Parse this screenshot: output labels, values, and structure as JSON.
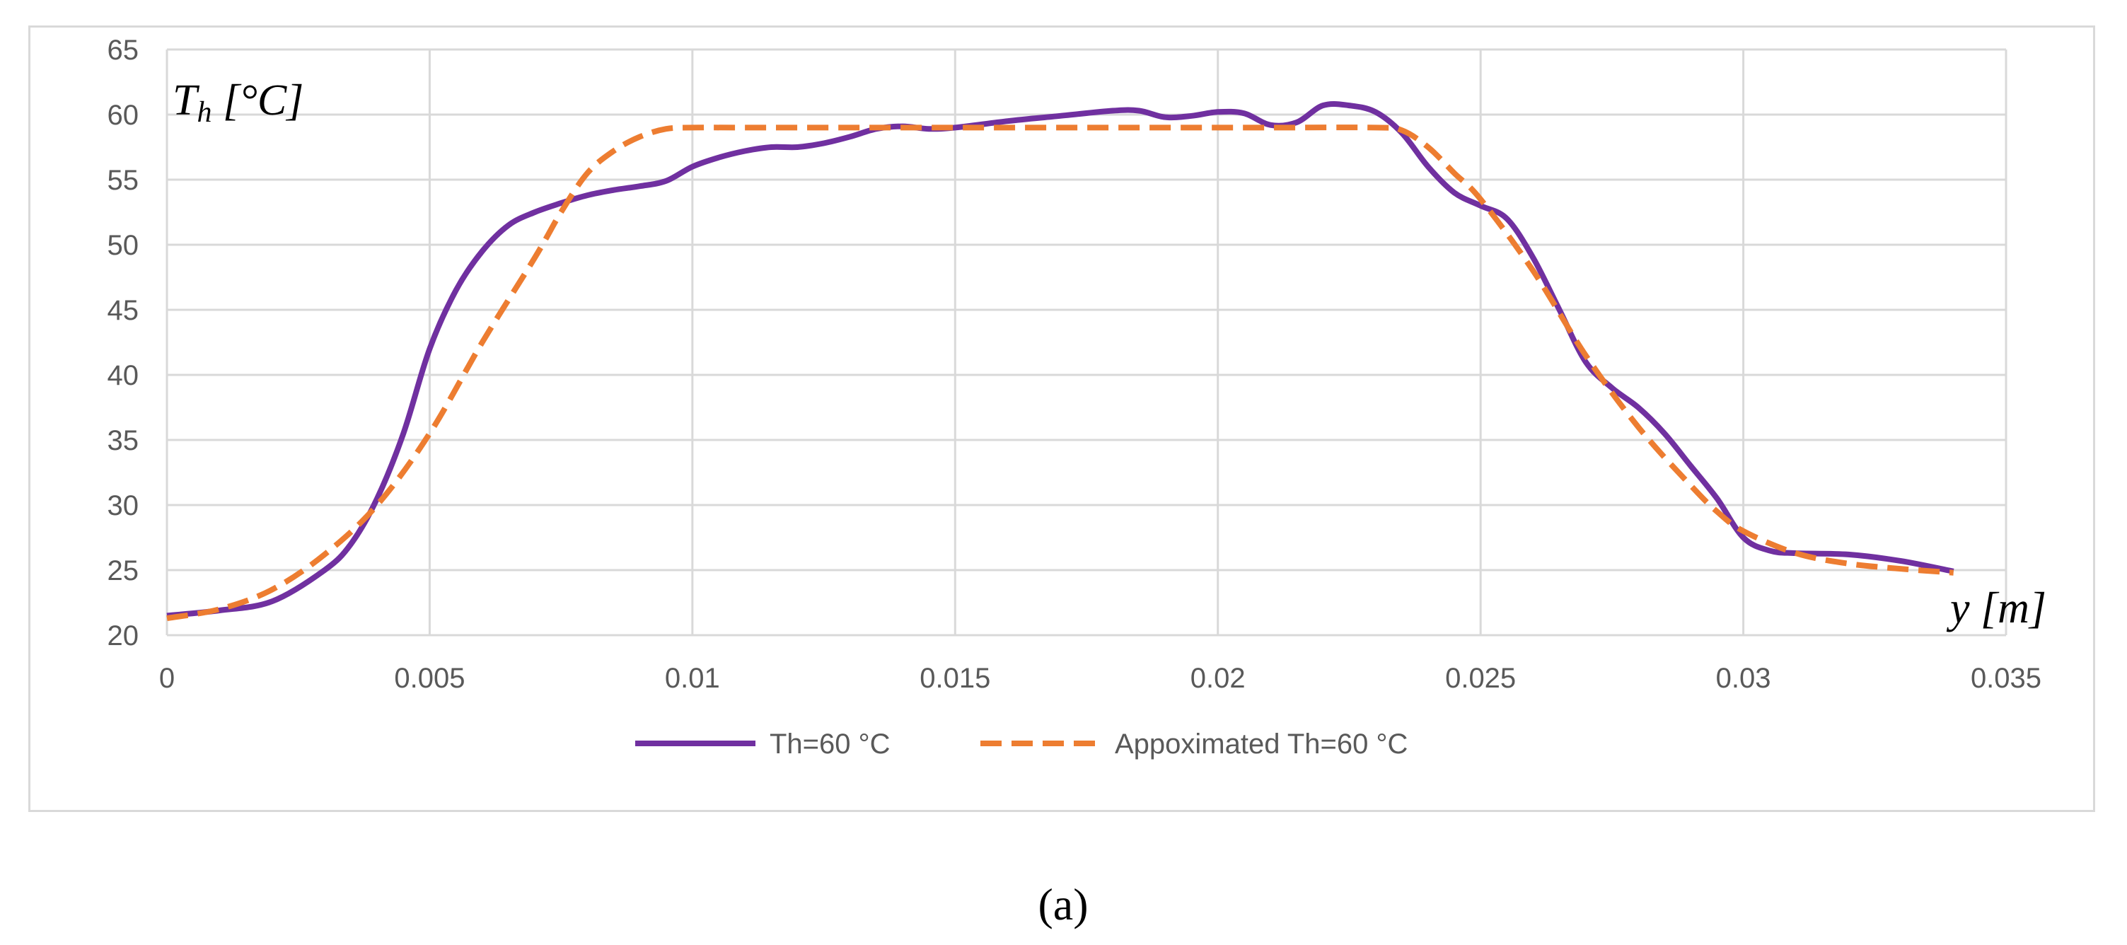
{
  "chart_data": {
    "type": "line",
    "ylabel": "Th [°C]",
    "ylabel_main": "T",
    "ylabel_sub": "h",
    "ylabel_unit": " [°C]",
    "xlabel": "y [m]",
    "xlim": [
      0,
      0.035
    ],
    "ylim": [
      20,
      65
    ],
    "x_ticks": [
      "0",
      "0.005",
      "0.01",
      "0.015",
      "0.02",
      "0.025",
      "0.03",
      "0.035"
    ],
    "y_ticks": [
      "20",
      "25",
      "30",
      "35",
      "40",
      "45",
      "50",
      "55",
      "60",
      "65"
    ],
    "grid": true,
    "legend_position": "bottom",
    "series": [
      {
        "name": "Th=60 °C",
        "color": "#7030a0",
        "dash": "solid",
        "x": [
          0,
          0.001,
          0.002,
          0.003,
          0.0035,
          0.004,
          0.0045,
          0.005,
          0.0055,
          0.006,
          0.0065,
          0.007,
          0.0075,
          0.008,
          0.0085,
          0.009,
          0.0095,
          0.01,
          0.0105,
          0.011,
          0.0115,
          0.012,
          0.0125,
          0.013,
          0.0135,
          0.014,
          0.0145,
          0.015,
          0.016,
          0.017,
          0.018,
          0.0185,
          0.019,
          0.0195,
          0.02,
          0.0205,
          0.021,
          0.0215,
          0.022,
          0.0225,
          0.023,
          0.0235,
          0.024,
          0.0245,
          0.025,
          0.0255,
          0.026,
          0.0265,
          0.027,
          0.0275,
          0.028,
          0.0285,
          0.029,
          0.0295,
          0.03,
          0.0305,
          0.031,
          0.032,
          0.033,
          0.034
        ],
        "y": [
          21.5,
          21.9,
          22.6,
          25.0,
          27.0,
          30.5,
          35.5,
          42.0,
          46.5,
          49.5,
          51.5,
          52.5,
          53.2,
          53.8,
          54.2,
          54.5,
          54.9,
          56.0,
          56.7,
          57.2,
          57.5,
          57.5,
          57.8,
          58.3,
          58.9,
          59.1,
          58.9,
          59.0,
          59.5,
          59.9,
          60.3,
          60.3,
          59.8,
          59.9,
          60.2,
          60.1,
          59.2,
          59.4,
          60.7,
          60.7,
          60.2,
          58.6,
          56.0,
          54.0,
          53.0,
          52.0,
          49.0,
          45.0,
          41.0,
          39.0,
          37.5,
          35.5,
          33.0,
          30.5,
          27.5,
          26.5,
          26.3,
          26.2,
          25.7,
          24.9
        ]
      },
      {
        "name": "Appoximated Th=60 °C",
        "color": "#ed7d31",
        "dash": "dashed",
        "x": [
          0,
          0.001,
          0.002,
          0.003,
          0.004,
          0.005,
          0.006,
          0.007,
          0.0075,
          0.008,
          0.0085,
          0.009,
          0.0095,
          0.01,
          0.011,
          0.013,
          0.015,
          0.017,
          0.019,
          0.021,
          0.023,
          0.0235,
          0.024,
          0.0245,
          0.025,
          0.026,
          0.027,
          0.028,
          0.029,
          0.0295,
          0.03,
          0.031,
          0.032,
          0.033,
          0.034
        ],
        "y": [
          21.3,
          22.0,
          23.5,
          26.2,
          30.0,
          35.5,
          42.5,
          49.0,
          52.5,
          55.5,
          57.2,
          58.3,
          58.9,
          59.0,
          59.0,
          59.0,
          59.0,
          59.0,
          59.0,
          59.0,
          59.0,
          58.8,
          57.5,
          55.5,
          53.5,
          48.0,
          41.5,
          36.0,
          31.5,
          29.5,
          28.0,
          26.3,
          25.5,
          25.1,
          24.8
        ]
      }
    ]
  },
  "caption": "(a)"
}
